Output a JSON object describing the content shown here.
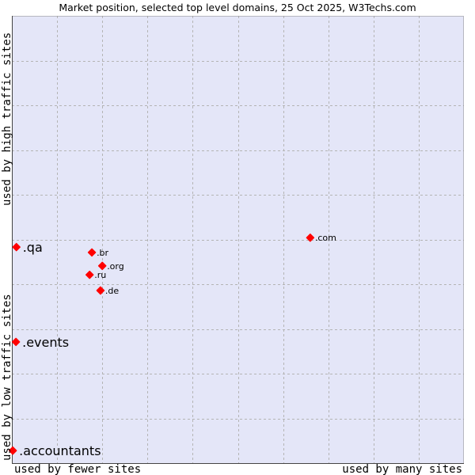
{
  "chart_data": {
    "type": "scatter",
    "title": "Market position, selected top level domains, 25 Oct 2025, W3Techs.com",
    "xlabel_left": "used by fewer sites",
    "xlabel_right": "used by many sites",
    "ylabel_bottom": "used by low traffic sites",
    "ylabel_top": "used by high traffic sites",
    "xlim": [
      0,
      10
    ],
    "ylim": [
      0,
      10
    ],
    "grid": true,
    "point_color": "#ff0000",
    "plot_background": "#e4e6f8",
    "points": [
      {
        "label": ".qa",
        "x": 0.1,
        "y": 4.83,
        "highlight": true
      },
      {
        "label": ".br",
        "x": 1.77,
        "y": 4.71,
        "highlight": false
      },
      {
        "label": ".org",
        "x": 2.0,
        "y": 4.41,
        "highlight": false
      },
      {
        "label": ".ru",
        "x": 1.72,
        "y": 4.21,
        "highlight": false
      },
      {
        "label": ".de",
        "x": 1.96,
        "y": 3.86,
        "highlight": false
      },
      {
        "label": ".com",
        "x": 6.6,
        "y": 5.04,
        "highlight": false
      },
      {
        "label": ".events",
        "x": 0.09,
        "y": 2.71,
        "highlight": true
      },
      {
        "label": ".accountants",
        "x": 0.02,
        "y": 0.28,
        "highlight": true
      }
    ]
  }
}
